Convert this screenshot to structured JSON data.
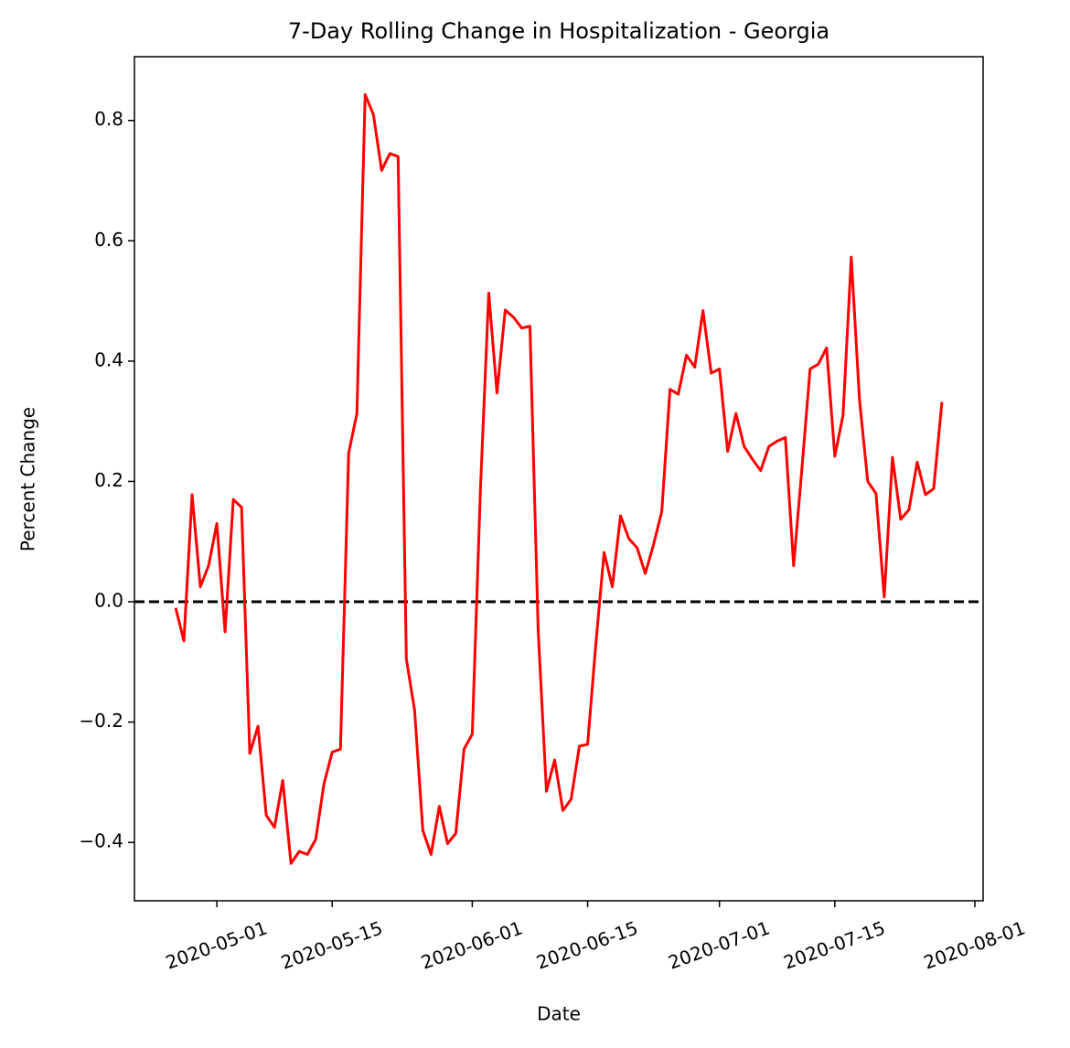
{
  "chart_data": {
    "type": "line",
    "title": "7-Day Rolling Change in Hospitalization - Georgia",
    "x_label": "Date",
    "y_label": "Percent Change",
    "x": [
      "2020-04-26",
      "2020-04-27",
      "2020-04-28",
      "2020-04-29",
      "2020-04-30",
      "2020-05-01",
      "2020-05-02",
      "2020-05-03",
      "2020-05-04",
      "2020-05-05",
      "2020-05-06",
      "2020-05-07",
      "2020-05-08",
      "2020-05-09",
      "2020-05-10",
      "2020-05-11",
      "2020-05-12",
      "2020-05-13",
      "2020-05-14",
      "2020-05-15",
      "2020-05-16",
      "2020-05-17",
      "2020-05-18",
      "2020-05-19",
      "2020-05-20",
      "2020-05-21",
      "2020-05-22",
      "2020-05-23",
      "2020-05-24",
      "2020-05-25",
      "2020-05-26",
      "2020-05-27",
      "2020-05-28",
      "2020-05-29",
      "2020-05-30",
      "2020-05-31",
      "2020-06-01",
      "2020-06-02",
      "2020-06-03",
      "2020-06-04",
      "2020-06-05",
      "2020-06-06",
      "2020-06-07",
      "2020-06-08",
      "2020-06-09",
      "2020-06-10",
      "2020-06-11",
      "2020-06-12",
      "2020-06-13",
      "2020-06-14",
      "2020-06-15",
      "2020-06-16",
      "2020-06-17",
      "2020-06-18",
      "2020-06-19",
      "2020-06-20",
      "2020-06-21",
      "2020-06-22",
      "2020-06-23",
      "2020-06-24",
      "2020-06-25",
      "2020-06-26",
      "2020-06-27",
      "2020-06-28",
      "2020-06-29",
      "2020-06-30",
      "2020-07-01",
      "2020-07-02",
      "2020-07-03",
      "2020-07-04",
      "2020-07-05",
      "2020-07-06",
      "2020-07-07",
      "2020-07-08",
      "2020-07-09",
      "2020-07-10",
      "2020-07-11",
      "2020-07-12",
      "2020-07-13",
      "2020-07-14",
      "2020-07-15",
      "2020-07-16",
      "2020-07-17",
      "2020-07-18",
      "2020-07-19",
      "2020-07-20",
      "2020-07-21",
      "2020-07-22",
      "2020-07-23",
      "2020-07-24",
      "2020-07-25",
      "2020-07-26",
      "2020-07-27",
      "2020-07-28"
    ],
    "series": [
      {
        "name": "Georgia",
        "color": "#ff0000",
        "values": [
          -0.01,
          -0.065,
          0.178,
          0.025,
          0.06,
          0.13,
          -0.05,
          0.17,
          0.157,
          -0.252,
          -0.207,
          -0.355,
          -0.375,
          -0.297,
          -0.435,
          -0.415,
          -0.42,
          -0.395,
          -0.303,
          -0.25,
          -0.245,
          0.247,
          0.313,
          0.843,
          0.81,
          0.717,
          0.745,
          0.74,
          -0.095,
          -0.18,
          -0.38,
          -0.42,
          -0.34,
          -0.402,
          -0.385,
          -0.245,
          -0.22,
          0.19,
          0.513,
          0.347,
          0.485,
          0.473,
          0.455,
          0.458,
          -0.048,
          -0.315,
          -0.263,
          -0.347,
          -0.328,
          -0.24,
          -0.237,
          -0.07,
          0.082,
          0.025,
          0.143,
          0.105,
          0.09,
          0.047,
          0.095,
          0.15,
          0.353,
          0.345,
          0.41,
          0.39,
          0.484,
          0.38,
          0.387,
          0.25,
          0.313,
          0.258,
          0.237,
          0.218,
          0.258,
          0.267,
          0.273,
          0.06,
          0.22,
          0.387,
          0.395,
          0.422,
          0.242,
          0.31,
          0.573,
          0.335,
          0.2,
          0.18,
          0.008,
          0.24,
          0.137,
          0.153,
          0.232,
          0.178,
          0.188,
          0.332
        ]
      }
    ],
    "xlim": [
      "2020-04-21",
      "2020-08-02"
    ],
    "xticks": [
      "2020-05-01",
      "2020-05-15",
      "2020-06-01",
      "2020-06-15",
      "2020-07-01",
      "2020-07-15",
      "2020-08-01"
    ],
    "ylim": [
      -0.497,
      0.906
    ],
    "yticks": [
      {
        "value": -0.4,
        "label": "−0.4"
      },
      {
        "value": -0.2,
        "label": "−0.2"
      },
      {
        "value": 0,
        "label": "0.0"
      },
      0.2,
      0.4,
      0.6,
      0.8
    ],
    "hline": {
      "y": 0,
      "color": "#000000",
      "style": "dashed"
    },
    "grid": false
  }
}
